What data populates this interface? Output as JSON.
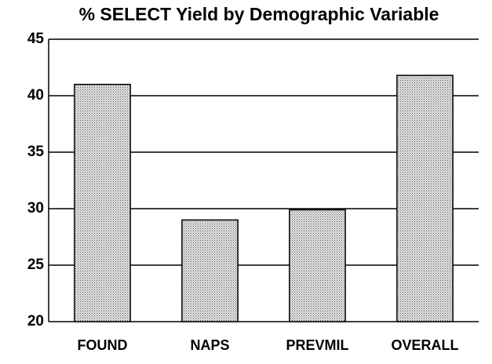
{
  "chart_data": {
    "type": "bar",
    "title": "% SELECT Yield by Demographic Variable",
    "categories": [
      "FOUND",
      "NAPS",
      "PREVMIL",
      "OVERALL"
    ],
    "values": [
      41,
      29,
      29.9,
      41.8
    ],
    "color": "#bdbdbd",
    "ylim": [
      20,
      45
    ],
    "yticks": [
      20,
      25,
      30,
      35,
      40,
      45
    ],
    "grid": true
  }
}
